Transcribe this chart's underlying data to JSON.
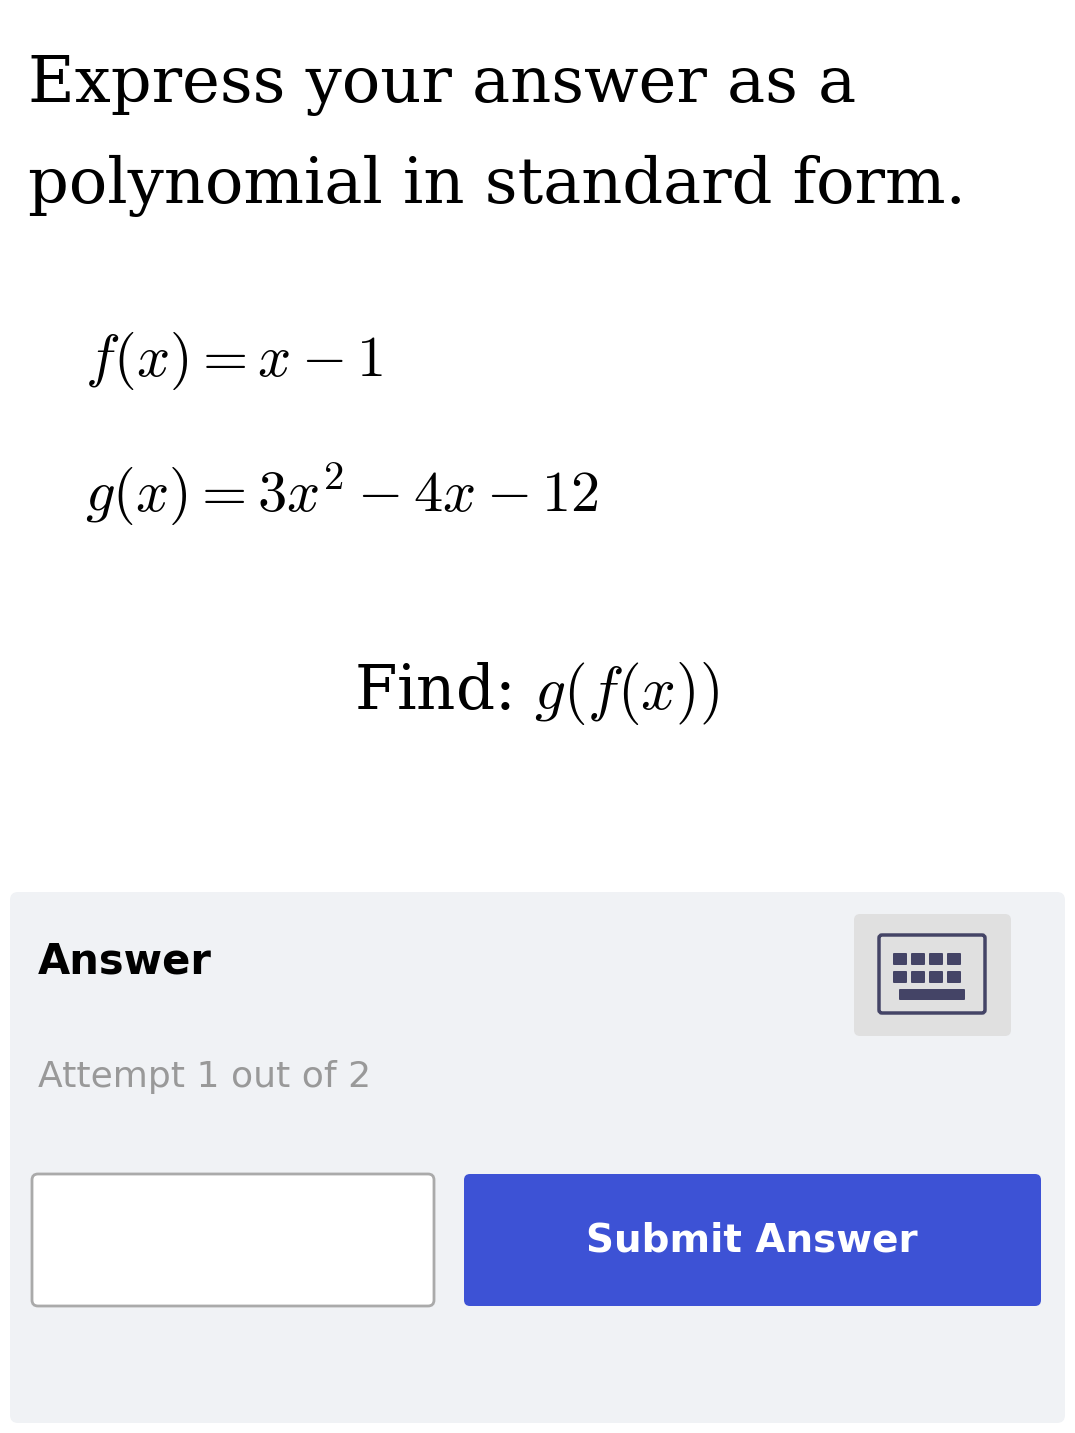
{
  "title_line1": "Express your answer as a",
  "title_line2": "polynomial in standard form.",
  "fx_label": "$f(x) = x - 1$",
  "gx_label": "$g(x) = 3x^2 - 4x - 12$",
  "find_label": "Find: $g(f(x))$",
  "answer_label": "Answer",
  "attempt_label": "Attempt 1 out of 2",
  "submit_label": "Submit Answer",
  "bg_color": "#ffffff",
  "answer_bg_color": "#f0f2f5",
  "submit_bg_color": "#3d52d5",
  "submit_text_color": "#ffffff",
  "input_border_color": "#aaaaaa",
  "title_fontsize": 46,
  "equation_fontsize": 42,
  "find_fontsize": 44,
  "answer_fontsize": 30,
  "attempt_fontsize": 26,
  "submit_fontsize": 28,
  "keyboard_bg_color": "#e0e0e0",
  "keyboard_icon_color": "#444466"
}
